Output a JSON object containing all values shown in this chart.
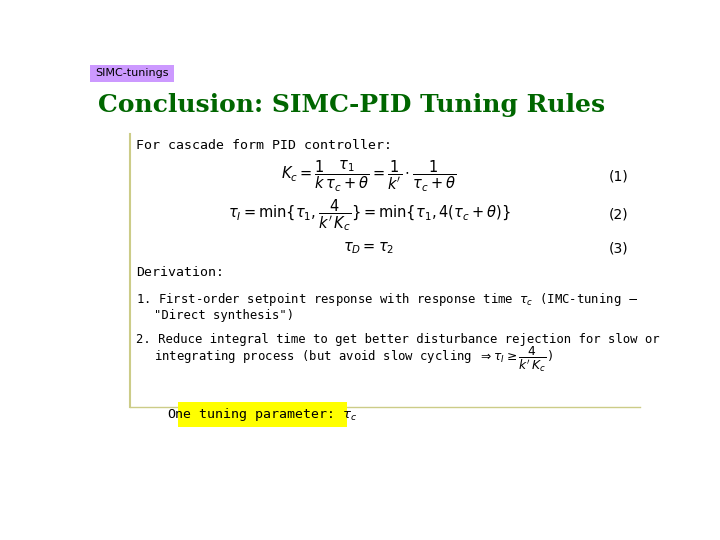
{
  "bg_color": "#ffffff",
  "tab_label": "SIMC-tunings",
  "tab_bg": "#cc99ff",
  "tab_fg": "#000000",
  "title": "Conclusion: SIMC-PID Tuning Rules",
  "title_color": "#006600",
  "box_line_color": "#cccc88",
  "for_cascade_text": "For cascade form PID controller:",
  "eq1": "$K_c = \\dfrac{1}{k}\\dfrac{\\tau_1}{\\tau_c + \\theta} = \\dfrac{1}{k'} \\cdot \\dfrac{1}{\\tau_c + \\theta}$",
  "eq1_num": "(1)",
  "eq2": "$\\tau_I = \\min\\{\\tau_1, \\dfrac{4}{k'\\,K_c}\\} = \\min\\{\\tau_1, 4(\\tau_c + \\theta)\\}$",
  "eq2_num": "(2)",
  "eq3": "$\\tau_D = \\tau_2$",
  "eq3_num": "(3)",
  "derivation_label": "Derivation:",
  "highlight_text": "One tuning parameter: $\\tau_c$",
  "highlight_bg": "#ffff00",
  "highlight_fg": "#000000"
}
